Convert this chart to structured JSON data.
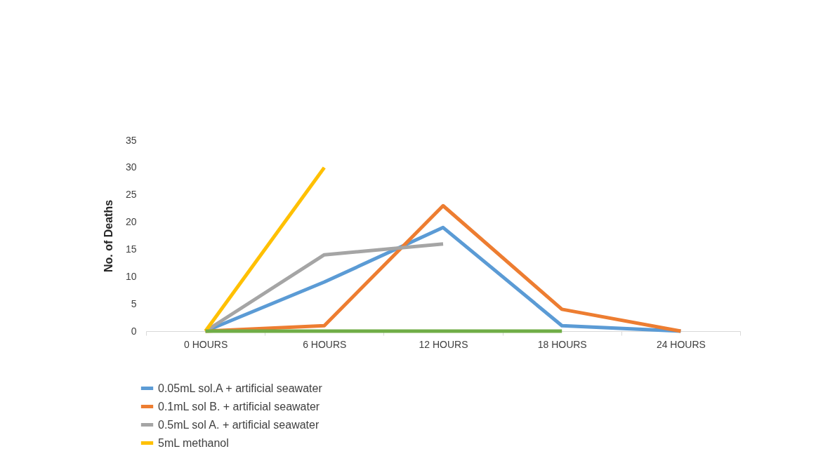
{
  "chart_data": {
    "type": "line",
    "ylabel": "No. of Deaths",
    "categories": [
      "0 HOURS",
      "6 HOURS",
      "12 HOURS",
      "18 HOURS",
      "24 HOURS"
    ],
    "ylim": [
      0,
      35
    ],
    "yticks": [
      0,
      5,
      10,
      15,
      20,
      25,
      30,
      35
    ],
    "legend": "bottom left",
    "line_style": "solid",
    "marker": "none",
    "series": [
      {
        "name": "0.05mL sol.A + artificial seawater",
        "color": "#5b9bd5",
        "values": [
          0,
          9,
          19,
          1,
          0
        ]
      },
      {
        "name": "0.1mL sol B. + artificial seawater",
        "color": "#ed7d31",
        "values": [
          0,
          1,
          23,
          4,
          0
        ]
      },
      {
        "name": "0.5mL sol A. + artificial seawater",
        "color": "#a5a5a5",
        "values": [
          0,
          14,
          16,
          null,
          null
        ]
      },
      {
        "name": "5mL methanol",
        "color": "#ffc000",
        "values": [
          0,
          30,
          null,
          null,
          null
        ]
      },
      {
        "color": "#70ad47",
        "values": [
          0,
          0,
          0,
          0,
          null
        ]
      }
    ]
  }
}
